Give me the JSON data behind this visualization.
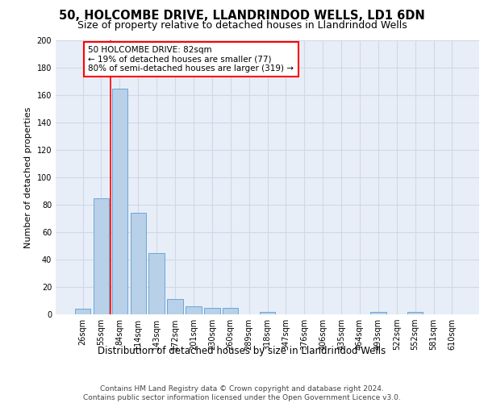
{
  "title1": "50, HOLCOMBE DRIVE, LLANDRINDOD WELLS, LD1 6DN",
  "title2": "Size of property relative to detached houses in Llandrindod Wells",
  "xlabel": "Distribution of detached houses by size in Llandrindod Wells",
  "ylabel": "Number of detached properties",
  "bar_labels": [
    "26sqm",
    "55sqm",
    "84sqm",
    "114sqm",
    "143sqm",
    "172sqm",
    "201sqm",
    "230sqm",
    "260sqm",
    "289sqm",
    "318sqm",
    "347sqm",
    "376sqm",
    "406sqm",
    "435sqm",
    "464sqm",
    "493sqm",
    "522sqm",
    "552sqm",
    "581sqm",
    "610sqm"
  ],
  "bar_values": [
    4,
    85,
    165,
    74,
    45,
    11,
    6,
    5,
    5,
    0,
    2,
    0,
    0,
    0,
    0,
    0,
    2,
    0,
    2,
    0,
    0
  ],
  "bar_color": "#b8d0e8",
  "bar_edge_color": "#5a9fd4",
  "annotation_text": "50 HOLCOMBE DRIVE: 82sqm\n← 19% of detached houses are smaller (77)\n80% of semi-detached houses are larger (319) →",
  "annotation_box_color": "white",
  "annotation_box_edge_color": "red",
  "vline_color": "red",
  "ylim": [
    0,
    200
  ],
  "yticks": [
    0,
    20,
    40,
    60,
    80,
    100,
    120,
    140,
    160,
    180,
    200
  ],
  "grid_color": "#d0d8e8",
  "background_color": "#e8eef8",
  "footer1": "Contains HM Land Registry data © Crown copyright and database right 2024.",
  "footer2": "Contains public sector information licensed under the Open Government Licence v3.0.",
  "title1_fontsize": 10.5,
  "title2_fontsize": 9,
  "xlabel_fontsize": 8.5,
  "ylabel_fontsize": 8,
  "tick_fontsize": 7,
  "annotation_fontsize": 7.5,
  "footer_fontsize": 6.5
}
